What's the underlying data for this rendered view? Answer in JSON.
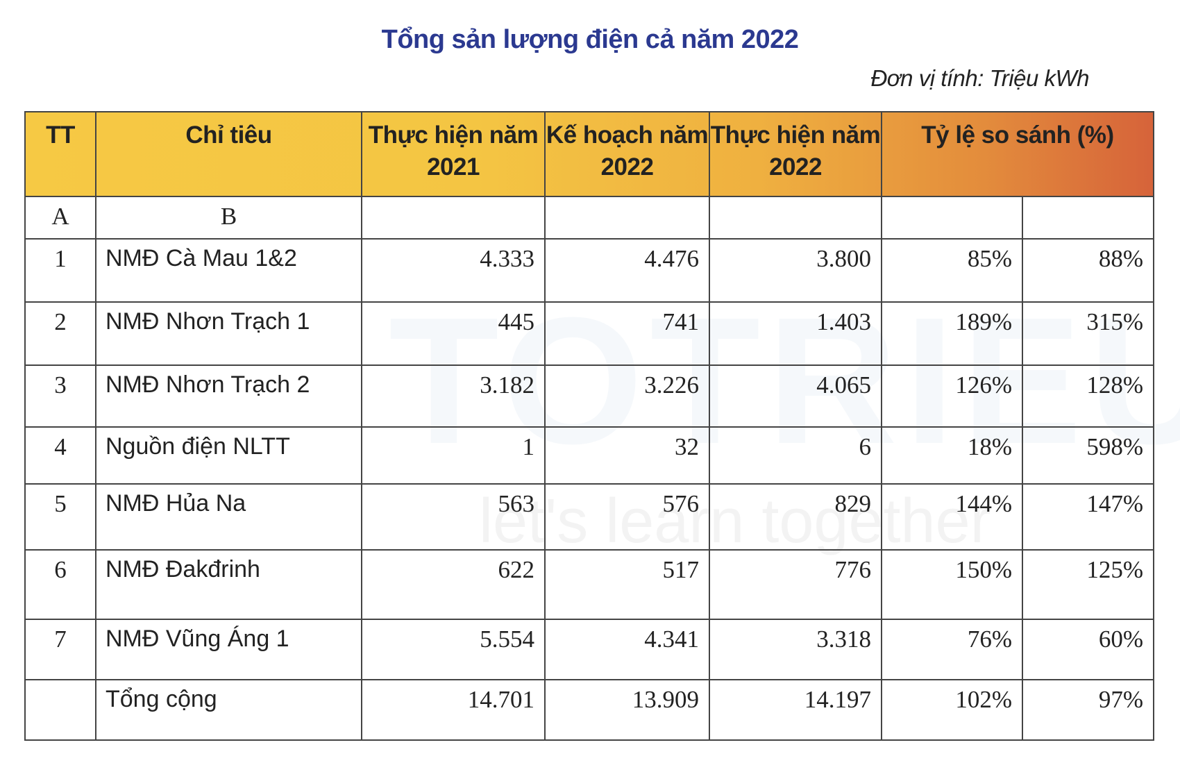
{
  "title": "Tổng sản lượng điện cả năm 2022",
  "unit": "Đơn vị tính: Triệu kWh",
  "watermark": "let's learn together",
  "colors": {
    "title": "#2b3990",
    "header_start": "#f6c944",
    "header_end": "#d6633a"
  },
  "headers": [
    "TT",
    "Chỉ tiêu",
    "Thực hiện năm 2021",
    "Kế hoạch năm 2022",
    "Thực hiện năm 2022",
    "Tỷ lệ so sánh (%)"
  ],
  "subheader": [
    "A",
    "B",
    "",
    "",
    "",
    "",
    ""
  ],
  "rows": [
    [
      "1",
      "NMĐ Cà Mau 1&2",
      "4.333",
      "4.476",
      "3.800",
      "85%",
      "88%"
    ],
    [
      "2",
      "NMĐ Nhơn Trạch 1",
      "445",
      "741",
      "1.403",
      "189%",
      "315%"
    ],
    [
      "3",
      "NMĐ Nhơn Trạch 2",
      "3.182",
      "3.226",
      "4.065",
      "126%",
      "128%"
    ],
    [
      "4",
      "Nguồn điện NLTT",
      "1",
      "32",
      "6",
      "18%",
      "598%"
    ],
    [
      "5",
      "NMĐ Hủa Na",
      "563",
      "576",
      "829",
      "144%",
      "147%"
    ],
    [
      "6",
      "NMĐ Đakđrinh",
      "622",
      "517",
      "776",
      "150%",
      "125%"
    ],
    [
      "7",
      "NMĐ Vũng Áng 1",
      "5.554",
      "4.341",
      "3.318",
      "76%",
      "60%"
    ],
    [
      "",
      "Tổng cộng",
      "14.701",
      "13.909",
      "14.197",
      "102%",
      "97%"
    ]
  ]
}
